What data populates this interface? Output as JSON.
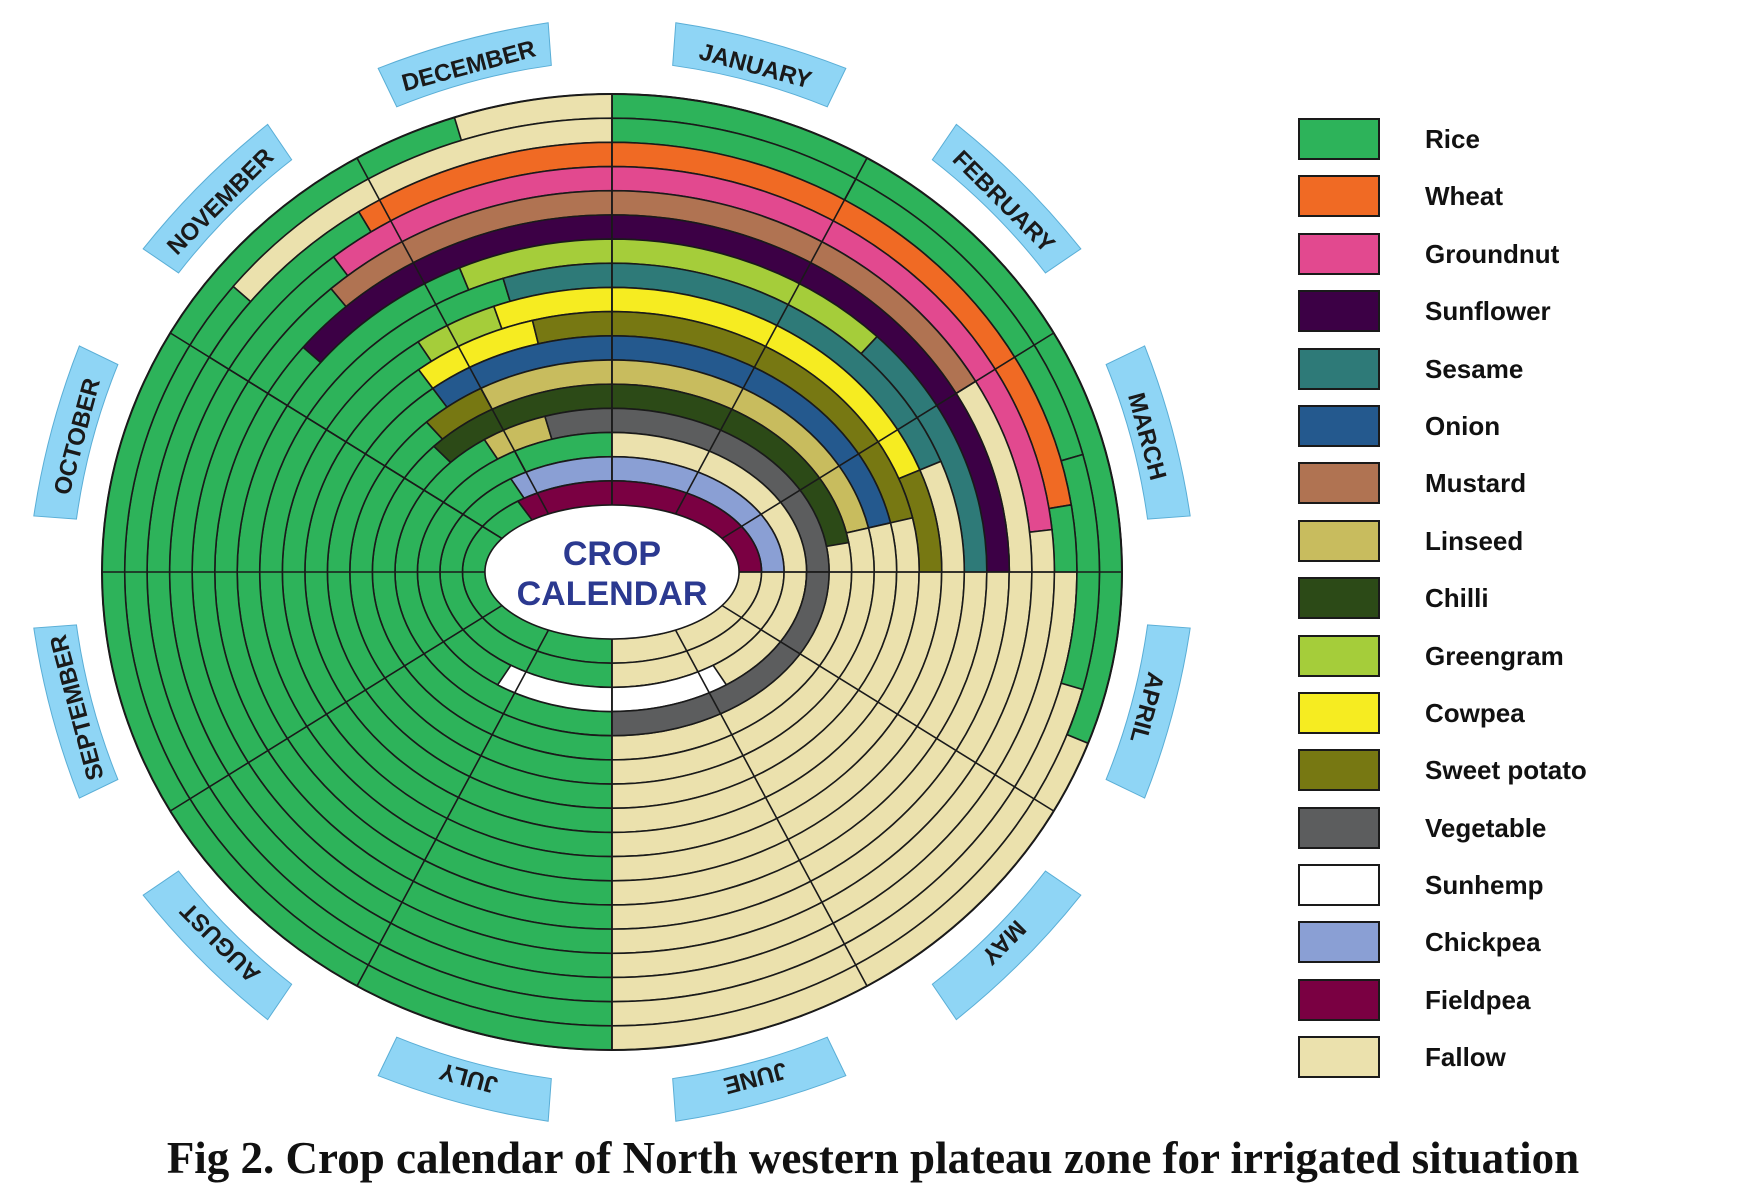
{
  "center_title": [
    "CROP",
    "CALENDAR"
  ],
  "months": [
    "JANUARY",
    "FEBRUARY",
    "MARCH",
    "APRIL",
    "MAY",
    "JUNE",
    "JULY",
    "AUGUST",
    "SEPTEMBER",
    "OCTOBER",
    "NOVEMBER",
    "DECEMBER"
  ],
  "crops": [
    {
      "name": "Rice",
      "color": "#2db35a"
    },
    {
      "name": "Wheat",
      "color": "#f06a24"
    },
    {
      "name": "Groundnut",
      "color": "#e2498f"
    },
    {
      "name": "Sunflower",
      "color": "#3c0045"
    },
    {
      "name": "Sesame",
      "color": "#2e7a78"
    },
    {
      "name": "Onion",
      "color": "#24598e"
    },
    {
      "name": "Mustard",
      "color": "#b07352"
    },
    {
      "name": "Linseed",
      "color": "#c8bc5e"
    },
    {
      "name": "Chilli",
      "color": "#2c4a17"
    },
    {
      "name": "Greengram",
      "color": "#a5cd3a"
    },
    {
      "name": "Cowpea",
      "color": "#f6ec21"
    },
    {
      "name": "Sweet potato",
      "color": "#777812"
    },
    {
      "name": "Vegetable",
      "color": "#5c5d5e"
    },
    {
      "name": "Sunhemp",
      "color": "#ffffff"
    },
    {
      "name": "Chickpea",
      "color": "#8a9fd4"
    },
    {
      "name": "Fieldpea",
      "color": "#7a0042"
    },
    {
      "name": "Fallow",
      "color": "#ebe1ad"
    }
  ],
  "rings": [
    {
      "crops": [
        [
          "Rice",
          0,
          4
        ],
        [
          "Fallow",
          4,
          12
        ]
      ]
    },
    {
      "crops": [
        [
          "Rice",
          0,
          6
        ],
        [
          "Fallow",
          6,
          12
        ]
      ]
    },
    {
      "crops": [
        [
          "Rice",
          0,
          6
        ],
        [
          "Sunhemp",
          6,
          7
        ],
        [
          "Fallow",
          7,
          12
        ]
      ]
    },
    {
      "crops": [
        [
          "Rice",
          0,
          6
        ],
        [
          "Vegetable",
          6,
          9
        ],
        [
          "Fallow",
          9,
          12
        ]
      ]
    },
    {
      "crops": [
        [
          "Rice",
          0,
          6
        ],
        [
          "Fallow",
          6,
          12
        ]
      ]
    },
    {
      "crops": [
        [
          "Rice",
          0,
          6
        ],
        [
          "Fallow",
          6,
          12
        ]
      ]
    },
    {
      "crops": [
        [
          "Rice",
          0,
          6
        ],
        [
          "Fallow",
          6,
          12
        ]
      ]
    },
    {
      "crops": [
        [
          "Rice",
          0,
          6
        ],
        [
          "Fallow",
          6,
          12
        ]
      ]
    },
    {
      "crops": [
        [
          "Rice",
          0,
          6
        ],
        [
          "Fallow",
          6,
          12
        ]
      ]
    },
    {
      "crops": [
        [
          "Rice",
          0,
          6
        ],
        [
          "Fallow",
          6,
          12
        ]
      ]
    },
    {
      "crops": [
        [
          "Rice",
          0,
          6
        ],
        [
          "Fallow",
          6,
          12
        ]
      ]
    },
    {
      "crops": [
        [
          "Rice",
          0,
          6
        ],
        [
          "Fallow",
          6,
          12
        ]
      ]
    },
    {
      "crops": [
        [
          "Rice",
          0,
          6
        ],
        [
          "Fallow",
          6,
          12
        ]
      ]
    },
    {
      "crops": [
        [
          "Rice",
          0,
          6
        ],
        [
          "Fallow",
          6,
          12
        ]
      ]
    },
    {
      "crops": [
        [
          "Rice",
          0,
          6
        ],
        [
          "Fallow",
          6,
          12
        ]
      ]
    },
    {
      "crops": [
        [
          "Rice",
          0,
          6
        ],
        [
          "Fallow",
          6,
          12
        ]
      ]
    },
    {
      "crops": [
        [
          "Rice",
          0,
          6
        ],
        [
          "Fallow",
          6,
          12
        ]
      ]
    }
  ],
  "top_rings": [
    [
      [
        "Rice",
        1,
        2.5
      ],
      [
        "Rice",
        2.5,
        3.5
      ],
      [
        "Fallow",
        10.3,
        12
      ],
      [
        "Rice",
        0,
        1
      ]
    ],
    [
      [
        "Rice",
        10,
        10.9
      ],
      [
        "Wheat",
        10.9,
        12
      ],
      [
        "Wheat",
        0,
        2.7
      ],
      [
        "Rice",
        2.7,
        3
      ]
    ],
    [
      [
        "Rice",
        10,
        10.7
      ],
      [
        "Groundnut",
        10.7,
        12
      ],
      [
        "Groundnut",
        0,
        2.8
      ],
      [
        "Fallow",
        2.8,
        3
      ]
    ],
    [
      [
        "Rice",
        10,
        10.6
      ],
      [
        "Mustard",
        10.6,
        12
      ],
      [
        "Mustard",
        0,
        2.0
      ],
      [
        "Fallow",
        2.0,
        3
      ]
    ],
    [
      [
        "Rice",
        10,
        10.3
      ],
      [
        "Sunflower",
        10.3,
        12
      ],
      [
        "Sunflower",
        0,
        3
      ]
    ],
    [
      [
        "Rice",
        10,
        11.2
      ],
      [
        "Greengram",
        11.2,
        12
      ],
      [
        "Greengram",
        0,
        1.5
      ],
      [
        "Sesame",
        1.5,
        3
      ]
    ],
    [
      [
        "Rice",
        10,
        11.4
      ],
      [
        "Sesame",
        11.4,
        12
      ],
      [
        "Sesame",
        0,
        2.3
      ],
      [
        "Fallow",
        2.3,
        3
      ]
    ],
    [
      [
        "Rice",
        10,
        10.8
      ],
      [
        "Greengram",
        10.8,
        11.3
      ],
      [
        "Cowpea",
        11.3,
        12
      ],
      [
        "Cowpea",
        0,
        2.3
      ],
      [
        "Sweet potato",
        2.3,
        3
      ]
    ],
    [
      [
        "Rice",
        10,
        10.7
      ],
      [
        "Cowpea",
        10.7,
        11.5
      ],
      [
        "Sweet potato",
        11.5,
        12
      ],
      [
        "Sweet potato",
        0,
        2.6
      ],
      [
        "Fallow",
        2.6,
        3
      ]
    ],
    [
      [
        "Rice",
        10,
        10.7
      ],
      [
        "Onion",
        10.7,
        12
      ],
      [
        "Onion",
        0,
        2.6
      ],
      [
        "Fallow",
        2.6,
        3
      ]
    ],
    [
      [
        "Rice",
        10,
        10.5
      ],
      [
        "Sweet potato",
        10.5,
        11.0
      ],
      [
        "Linseed",
        11.0,
        12
      ],
      [
        "Linseed",
        0,
        2.6
      ],
      [
        "Fallow",
        2.6,
        3
      ]
    ],
    [
      [
        "Rice",
        10,
        10.4
      ],
      [
        "Chilli",
        10.4,
        12
      ],
      [
        "Chilli",
        0,
        2.7
      ],
      [
        "Fallow",
        2.7,
        3
      ]
    ],
    [
      [
        "Rice",
        10,
        10.8
      ],
      [
        "Linseed",
        10.8,
        11.4
      ],
      [
        "Vegetable",
        11.4,
        12
      ],
      [
        "Vegetable",
        0,
        3
      ]
    ],
    [
      [
        "Rice",
        10,
        11.0
      ],
      [
        "Rice",
        11.0,
        12
      ],
      [
        "Fallow",
        0,
        3
      ]
    ],
    [
      [
        "Rice",
        10,
        10.8
      ],
      [
        "Chickpea",
        10.8,
        12
      ],
      [
        "Chickpea",
        0,
        3
      ]
    ],
    [
      [
        "Rice",
        10,
        10.7
      ],
      [
        "Fieldpea",
        10.7,
        12
      ],
      [
        "Fieldpea",
        0,
        3
      ]
    ]
  ],
  "caption": "Fig 2. Crop calendar of North western plateau zone for irrigated situation"
}
